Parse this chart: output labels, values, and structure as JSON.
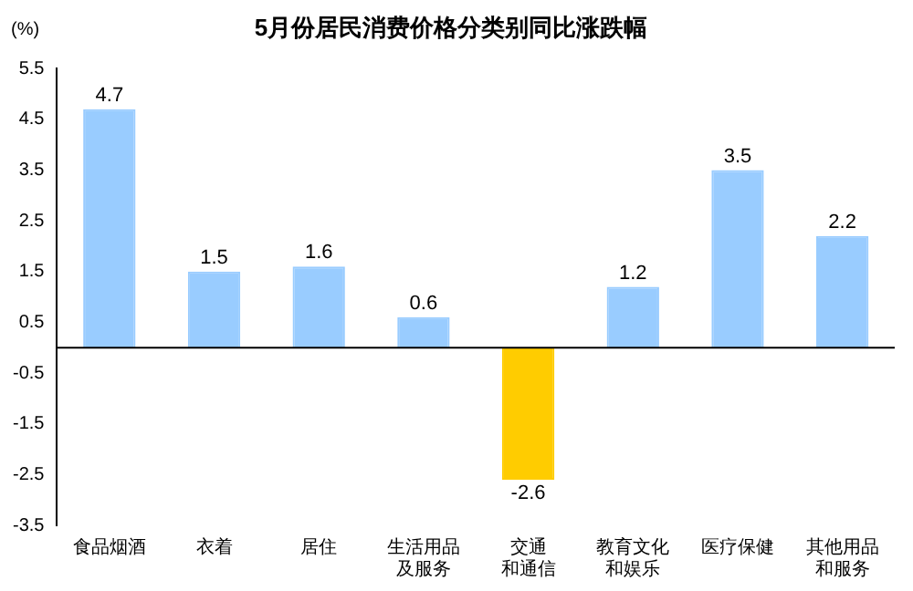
{
  "chart_data": {
    "type": "bar",
    "title": "5月份居民消费价格分类别同比涨跌幅",
    "ylabel": "(%)",
    "categories": [
      "食品烟酒",
      "衣着",
      "居住",
      "生活用品及服务",
      "交通和通信",
      "教育文化和娱乐",
      "医疗保健",
      "其他用品和服务"
    ],
    "values": [
      4.7,
      1.5,
      1.6,
      0.6,
      -2.6,
      1.2,
      3.5,
      2.2
    ],
    "colors": [
      "#99ccff",
      "#99ccff",
      "#99ccff",
      "#99ccff",
      "#ffcc00",
      "#99ccff",
      "#99ccff",
      "#99ccff"
    ],
    "ylim": [
      -3.5,
      5.5
    ],
    "yticks": [
      -3.5,
      -2.5,
      -1.5,
      -0.5,
      0.5,
      1.5,
      2.5,
      3.5,
      4.5,
      5.5
    ],
    "data_labels": true,
    "legend": false,
    "grid": false
  }
}
